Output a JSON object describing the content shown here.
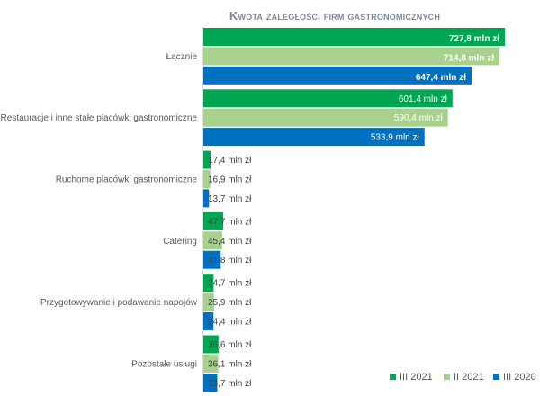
{
  "chart_data": {
    "type": "bar",
    "orientation": "horizontal",
    "title": "Kwota zaległości firm gastronomicznych",
    "unit": "mln zł",
    "categories": [
      "Łącznie",
      "Restauracje i inne stałe placówki gastronomiczne",
      "Ruchome placówki gastronomiczne",
      "Catering",
      "Przygotowywanie i podawanie napojów",
      "Pozostałe usługi"
    ],
    "series": [
      {
        "name": "III 2021",
        "color": "#00a651",
        "values": [
          727.8,
          601.4,
          17.4,
          47.7,
          24.7,
          36.6
        ],
        "labels": [
          "727,8 mln zł",
          "601,4 mln zł",
          "17,4 mln zł",
          "47,7 mln zł",
          "24,7 mln zł",
          "36,6 mln zł"
        ]
      },
      {
        "name": "II 2021",
        "color": "#a9d18e",
        "values": [
          714.8,
          590.4,
          16.9,
          45.4,
          25.9,
          36.1
        ],
        "labels": [
          "714,8 mln zł",
          "590,4 mln zł",
          "16,9 mln zł",
          "45,4 mln zł",
          "25,9 mln zł",
          "36,1 mln zł"
        ]
      },
      {
        "name": "III 2020",
        "color": "#0070c0",
        "values": [
          647.4,
          533.9,
          13.7,
          41.8,
          24.4,
          33.7
        ],
        "labels": [
          "647,4 mln zł",
          "533,9 mln zł",
          "13,7 mln zł",
          "41,8 mln zł",
          "24,4 mln zł",
          "33,7 mln zł"
        ]
      }
    ],
    "xlim": [
      0,
      730
    ],
    "grid": false,
    "legend": "bottom-right",
    "axis_color": "#bfbfbf"
  }
}
